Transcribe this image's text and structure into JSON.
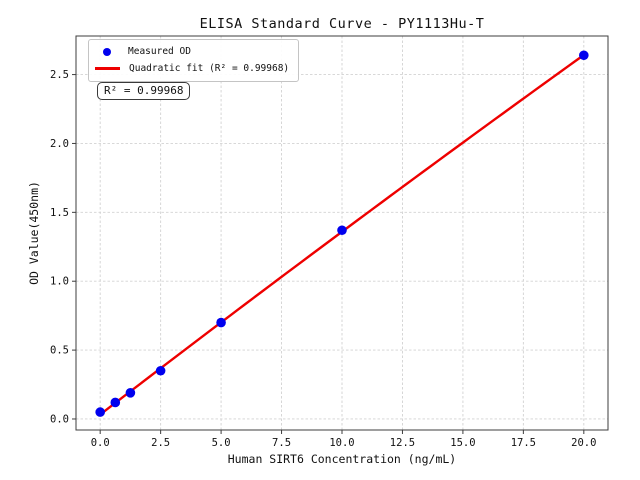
{
  "chart_data": {
    "type": "scatter",
    "title": "ELISA Standard Curve - PY1113Hu-T",
    "xlabel": "Human SIRT6 Concentration (ng/mL)",
    "ylabel": "OD Value(450nm)",
    "xlim": [
      -1,
      21
    ],
    "ylim": [
      -0.08,
      2.78
    ],
    "x_ticks": [
      0,
      2.5,
      5,
      7.5,
      10,
      12.5,
      15,
      17.5,
      20
    ],
    "x_tick_labels": [
      "0.0",
      "2.5",
      "5.0",
      "7.5",
      "10.0",
      "12.5",
      "15.0",
      "17.5",
      "20.0"
    ],
    "y_ticks": [
      0,
      0.5,
      1.0,
      1.5,
      2.0,
      2.5
    ],
    "y_tick_labels": [
      "0.0",
      "0.5",
      "1.0",
      "1.5",
      "2.0",
      "2.5"
    ],
    "grid": true,
    "legend_position": "upper left",
    "series": [
      {
        "name": "Measured OD",
        "kind": "scatter",
        "color": "#0000ee",
        "x": [
          0,
          0.625,
          1.25,
          2.5,
          5,
          10,
          20
        ],
        "y": [
          0.05,
          0.12,
          0.19,
          0.35,
          0.7,
          1.37,
          2.64
        ]
      },
      {
        "name": "Quadratic fit (R² = 0.99968)",
        "kind": "quadratic-fit",
        "color": "#ee0000"
      }
    ],
    "annotation": "R² = 0.99968",
    "r_squared": 0.99968
  },
  "style": {
    "spine_color": "#3d3d3d",
    "grid_color": "#d2d2d2",
    "tick_label_color": "#111111"
  }
}
